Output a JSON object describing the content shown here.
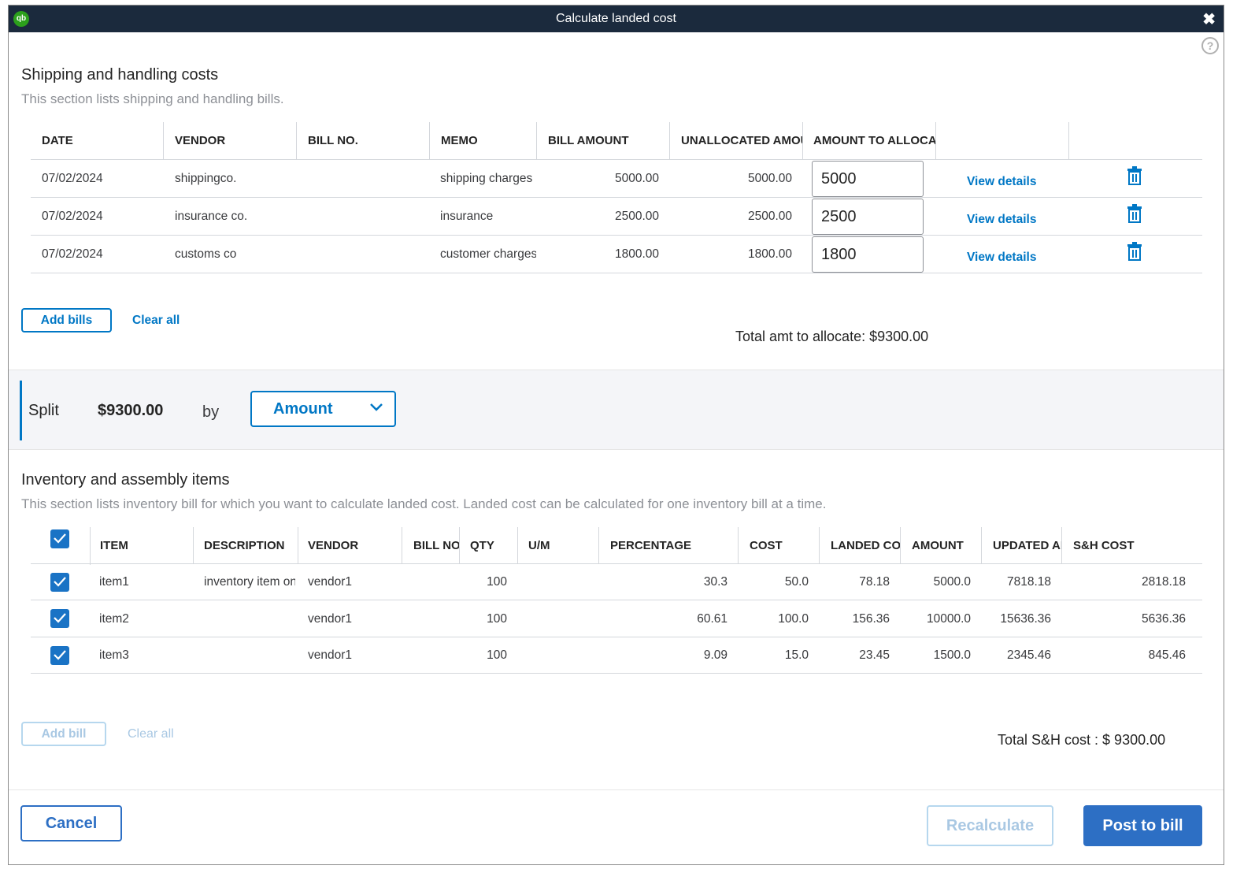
{
  "window": {
    "title": "Calculate landed cost",
    "close_glyph": "✖",
    "logo_text": "qb",
    "help_glyph": "?"
  },
  "shipping": {
    "title": "Shipping and handling costs",
    "subtitle": "This section lists shipping and handling bills.",
    "columns": [
      "DATE",
      "VENDOR",
      "BILL NO.",
      "MEMO",
      "BILL AMOUNT",
      "UNALLOCATED AMOUNT",
      "AMOUNT TO ALLOCATE",
      "",
      ""
    ],
    "rows": [
      {
        "date": "07/02/2024",
        "vendor": "shippingco.",
        "bill_no": "",
        "memo": "shipping charges",
        "bill_amount": "5000.00",
        "unallocated": "5000.00",
        "allocate": "5000",
        "link": "View details"
      },
      {
        "date": "07/02/2024",
        "vendor": "insurance co.",
        "bill_no": "",
        "memo": "insurance",
        "bill_amount": "2500.00",
        "unallocated": "2500.00",
        "allocate": "2500",
        "link": "View details"
      },
      {
        "date": "07/02/2024",
        "vendor": "customs co",
        "bill_no": "",
        "memo": "customer charges",
        "bill_amount": "1800.00",
        "unallocated": "1800.00",
        "allocate": "1800",
        "link": "View details"
      }
    ],
    "add_bills_label": "Add bills",
    "clear_all_label": "Clear all",
    "total_label": "Total amt to allocate: $9300.00"
  },
  "split": {
    "label": "Split",
    "amount": "$9300.00",
    "by_label": "by",
    "method": "Amount"
  },
  "inventory": {
    "title": "Inventory and assembly items",
    "subtitle": "This section lists inventory bill for which you want to calculate landed cost. Landed cost can be calculated for one inventory bill at a time.",
    "columns": [
      "ITEM",
      "DESCRIPTION",
      "VENDOR",
      "BILL NO",
      "QTY",
      "U/M",
      "PERCENTAGE",
      "COST",
      "LANDED COST",
      "AMOUNT",
      "UPDATED AMOUNT",
      "S&H COST"
    ],
    "rows": [
      {
        "checked": true,
        "item": "item1",
        "description": "inventory item one",
        "vendor": "vendor1",
        "bill_no": "",
        "qty": "100",
        "um": "",
        "percentage": "30.3",
        "cost": "50.0",
        "landed_cost": "78.18",
        "amount": "5000.0",
        "updated_amount": "7818.18",
        "sh_cost": "2818.18"
      },
      {
        "checked": true,
        "item": "item2",
        "description": "",
        "vendor": "vendor1",
        "bill_no": "",
        "qty": "100",
        "um": "",
        "percentage": "60.61",
        "cost": "100.0",
        "landed_cost": "156.36",
        "amount": "10000.0",
        "updated_amount": "15636.36",
        "sh_cost": "5636.36"
      },
      {
        "checked": true,
        "item": "item3",
        "description": "",
        "vendor": "vendor1",
        "bill_no": "",
        "qty": "100",
        "um": "",
        "percentage": "9.09",
        "cost": "15.0",
        "landed_cost": "23.45",
        "amount": "1500.0",
        "updated_amount": "2345.46",
        "sh_cost": "845.46"
      }
    ],
    "add_bill_label": "Add bill",
    "clear_all_label": "Clear all",
    "total_label": "Total S&H cost : $ 9300.00"
  },
  "footer": {
    "cancel_label": "Cancel",
    "recalculate_label": "Recalculate",
    "post_label": "Post to bill"
  }
}
